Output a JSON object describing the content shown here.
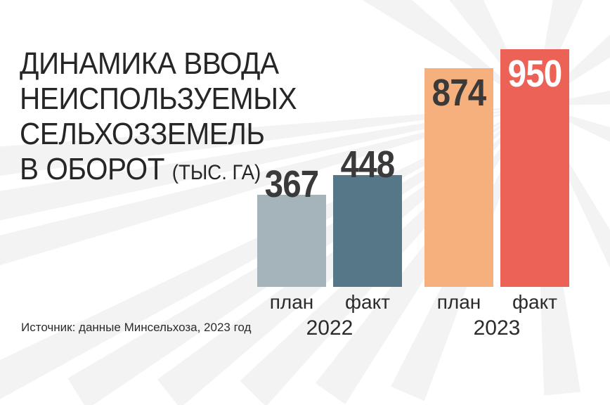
{
  "title": {
    "lines": [
      "ДИНАМИКА ВВОДА",
      "НЕИСПОЛЬЗУЕМЫХ",
      "СЕЛЬХОЗЗЕМЕЛЬ",
      "В ОБОРОТ"
    ],
    "unit": "(ТЫС. ГА)"
  },
  "source": "Источник: данные Минсельхоза, 2023 год",
  "colors": {
    "plan_2022": "#a5b3bb",
    "fact_2022": "#567788",
    "plan_2023": "#f5b07e",
    "fact_2023": "#ec6256",
    "background_rays": "#e9e9e9"
  },
  "chart_data": {
    "type": "bar",
    "title": "ДИНАМИКА ВВОДА НЕИСПОЛЬЗУЕМЫХ СЕЛЬХОЗЗЕМЕЛЬ В ОБОРОТ (ТЫС. ГА)",
    "groups": [
      {
        "year": "2022",
        "bars": [
          {
            "label": "план",
            "value": 367,
            "value_label": "367",
            "color": "#a5b3bb"
          },
          {
            "label": "факт",
            "value": 448,
            "value_label": "448",
            "color": "#567788"
          }
        ]
      },
      {
        "year": "2023",
        "bars": [
          {
            "label": "план",
            "value": 874,
            "value_label": "874",
            "color": "#f5b07e"
          },
          {
            "label": "факт",
            "value": 950,
            "value_label": "950",
            "color": "#ec6256"
          }
        ]
      }
    ],
    "ylim": [
      0,
      950
    ],
    "grid": false,
    "legend": "none"
  }
}
